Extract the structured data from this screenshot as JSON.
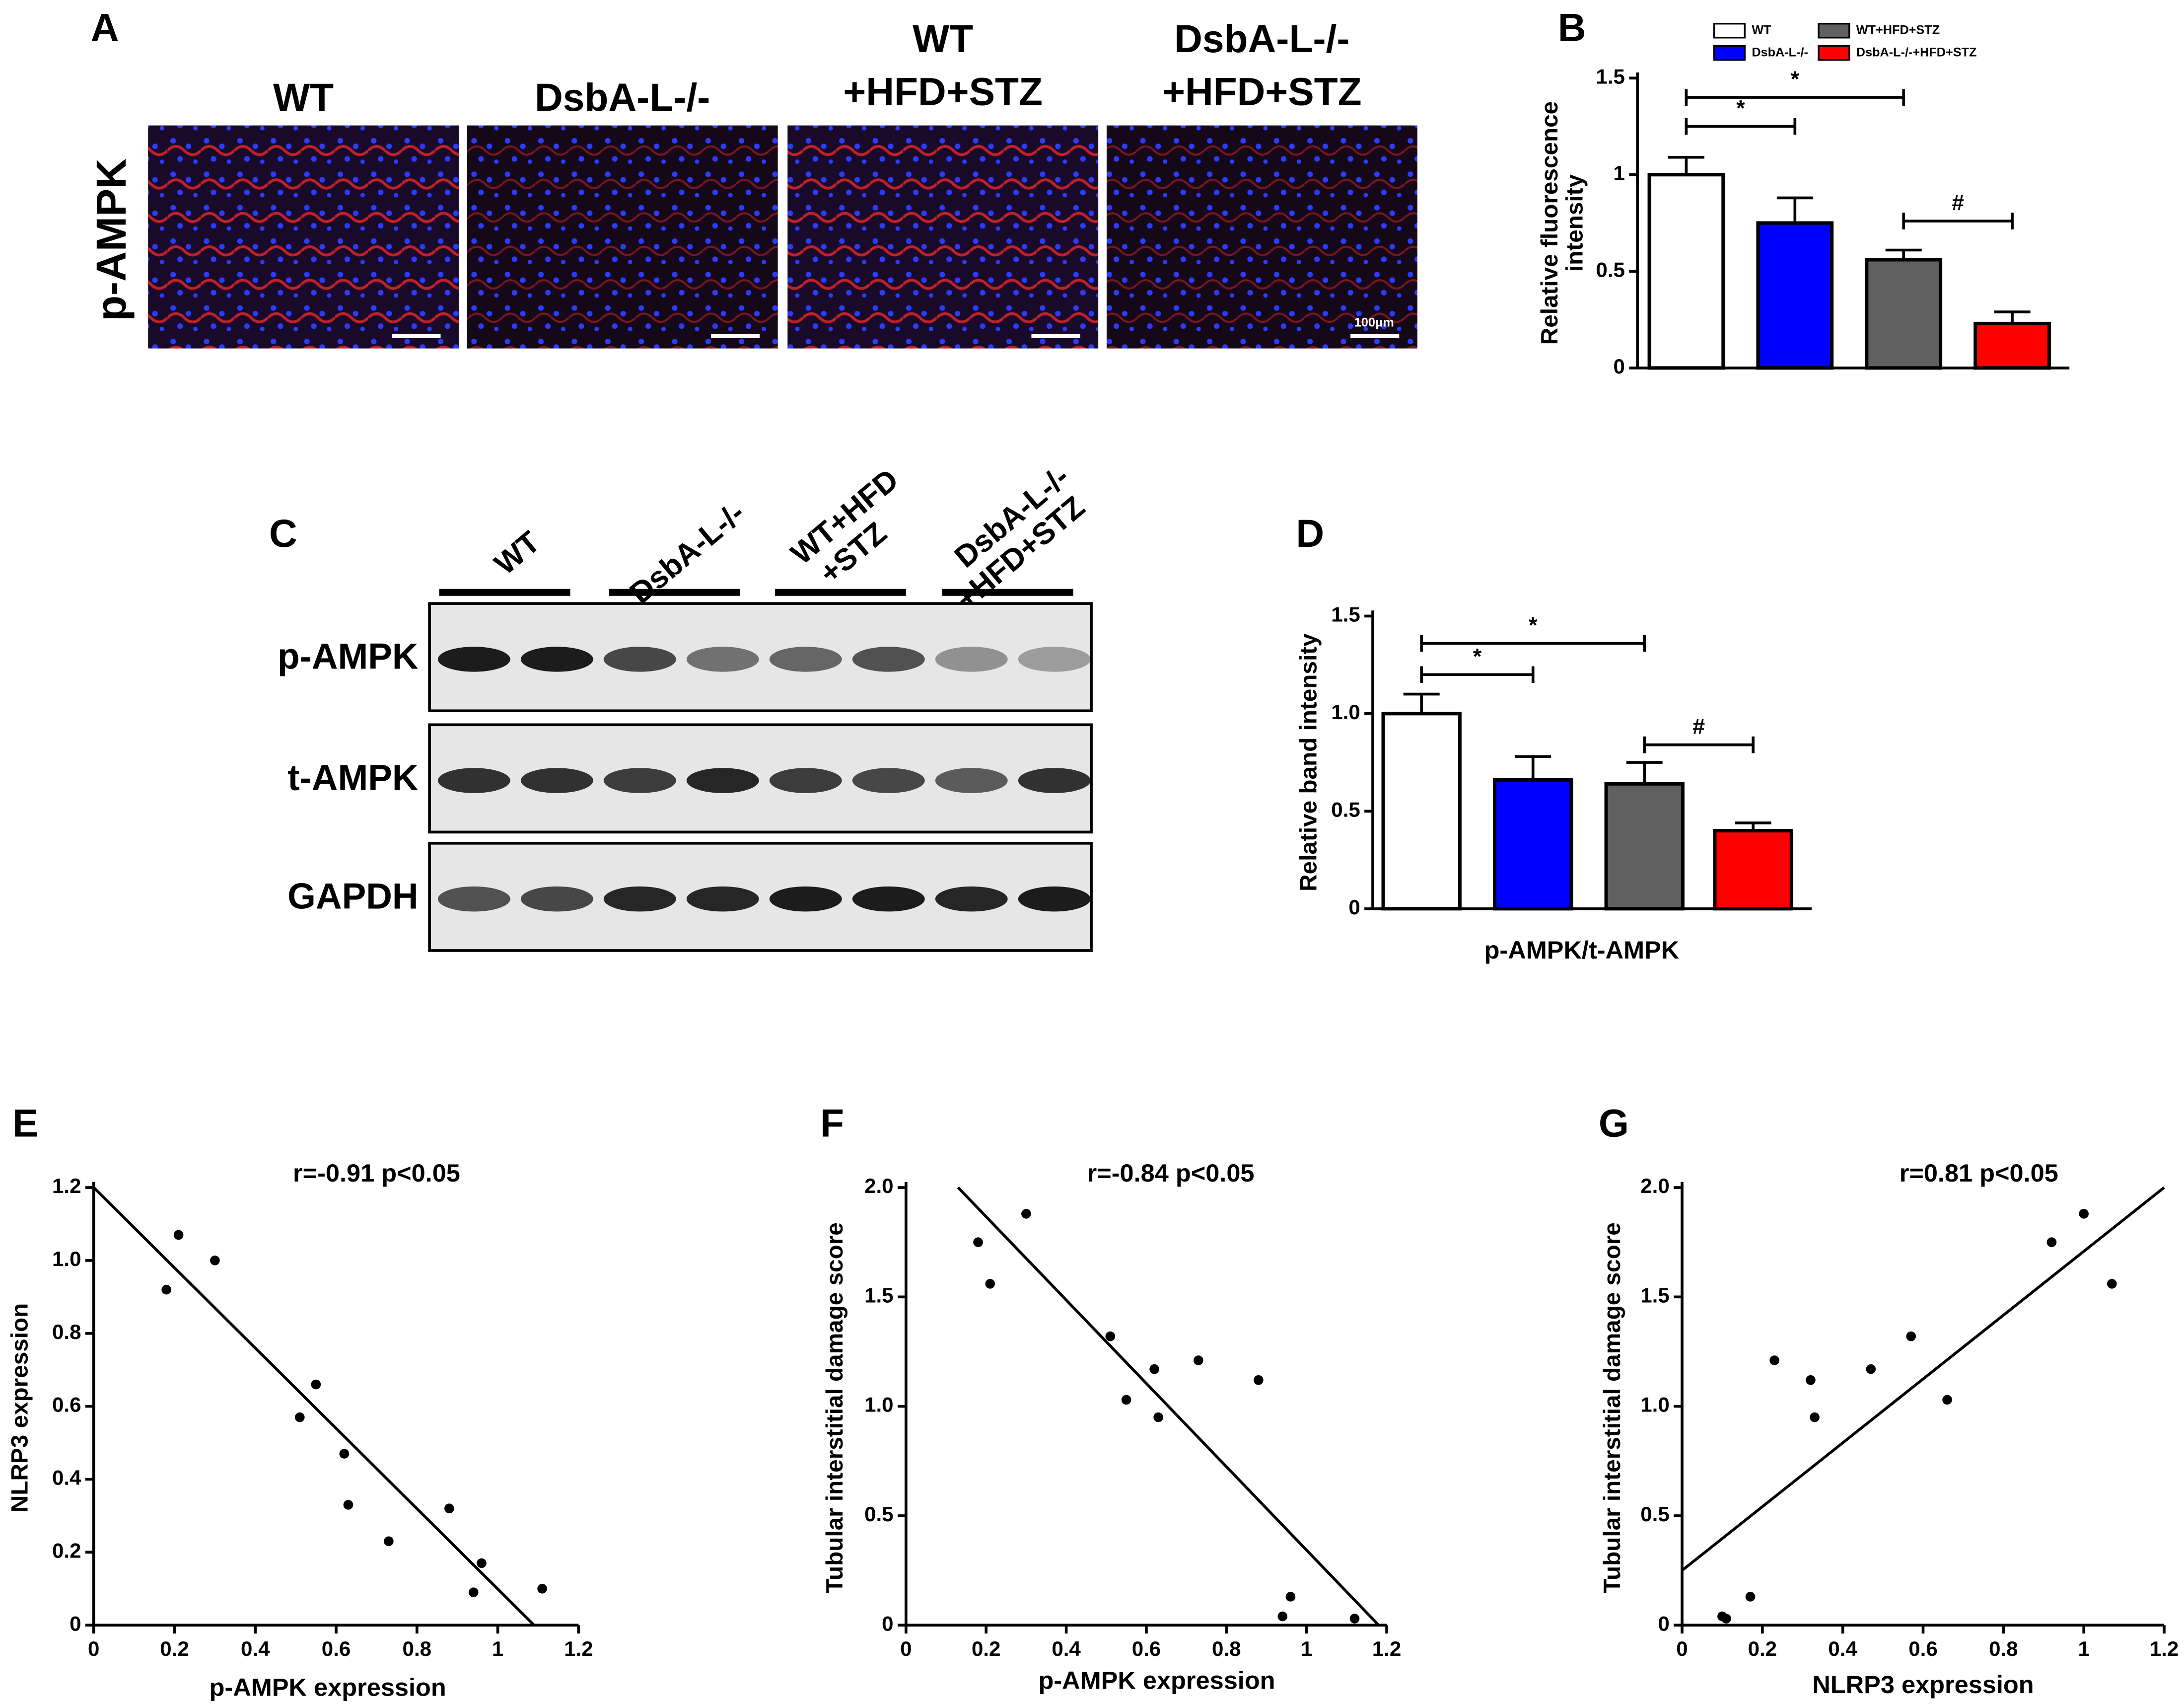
{
  "panel_a": {
    "label": "A",
    "row_label": "p-AMPK",
    "columns": [
      [
        "WT"
      ],
      [
        "DsbA-L-/-"
      ],
      [
        "WT",
        "+HFD+STZ"
      ],
      [
        "DsbA-L-/-",
        "+HFD+STZ"
      ]
    ],
    "scale_label": "100μm"
  },
  "panel_c": {
    "label": "C",
    "lanes": [
      [
        "WT"
      ],
      [
        "DsbA-L-/-"
      ],
      [
        "WT+HFD",
        "+STZ"
      ],
      [
        "DsbA-L-/-",
        "+HFD+STZ"
      ]
    ],
    "rows": [
      "p-AMPK",
      "t-AMPK",
      "GAPDH"
    ]
  },
  "chart_data": [
    {
      "type": "bar",
      "label": "B",
      "ylabel": [
        "Relative fluorescence",
        "intensity"
      ],
      "categories": [
        "WT",
        "DsbA-L-/-",
        "WT+HFD+STZ",
        "DsbA-L-/-+HFD+STZ"
      ],
      "values": [
        1.0,
        0.75,
        0.56,
        0.23
      ],
      "errors": [
        0.09,
        0.13,
        0.05,
        0.06
      ],
      "colors": [
        "#ffffff",
        "#0000ff",
        "#606060",
        "#ff0000"
      ],
      "legend": true,
      "ylim": [
        0,
        1.5
      ],
      "yticks": [
        0,
        0.5,
        1,
        1.5
      ],
      "annotations": [
        {
          "text": "*"
        },
        {
          "text": "*"
        },
        {
          "text": "#"
        }
      ]
    },
    {
      "type": "bar",
      "label": "D",
      "ylabel": [
        "Relative band intensity"
      ],
      "xlabel": "p-AMPK/t-AMPK",
      "values": [
        1.0,
        0.66,
        0.64,
        0.4
      ],
      "errors": [
        0.1,
        0.12,
        0.11,
        0.04
      ],
      "colors": [
        "#ffffff",
        "#0000ff",
        "#606060",
        "#ff0000"
      ],
      "legend": false,
      "ylim": [
        0,
        1.5
      ],
      "yticks": [
        0,
        0.5,
        {
          "value": 1,
          "label": "1.0"
        },
        1.5
      ],
      "annotations": [
        {
          "text": "*"
        },
        {
          "text": "*"
        },
        {
          "text": "#"
        }
      ]
    },
    {
      "type": "scatter",
      "label": "E",
      "ylabel": [
        "NLRP3 expression"
      ],
      "xlabel": "p-AMPK expression",
      "annotation": "r=-0.91   p<0.05",
      "color": "#000000",
      "x": [
        0.18,
        0.21,
        0.3,
        0.51,
        0.55,
        0.62,
        0.63,
        0.73,
        0.88,
        0.94,
        0.96,
        1.11
      ],
      "values": [
        0.92,
        1.07,
        1.0,
        0.57,
        0.66,
        0.47,
        0.33,
        0.23,
        0.32,
        0.09,
        0.17,
        0.1
      ],
      "fit_line": {
        "x": [
          0,
          1.09
        ],
        "values": [
          1.2,
          0
        ]
      },
      "xlim": [
        0,
        1.2
      ],
      "xticks": [
        0,
        0.2,
        0.4,
        0.6,
        0.8,
        1,
        1.2
      ],
      "ylim": [
        0,
        1.2
      ],
      "yticks": [
        0,
        0.2,
        0.4,
        0.6,
        0.8,
        {
          "value": 1,
          "label": "1.0"
        },
        1.2
      ]
    },
    {
      "type": "scatter",
      "label": "F",
      "ylabel": [
        "Tubular interstitial damage score"
      ],
      "xlabel": "p-AMPK expression",
      "annotation": "r=-0.84   p<0.05",
      "color": "#000000",
      "x": [
        0.18,
        0.21,
        0.3,
        0.51,
        0.55,
        0.62,
        0.63,
        0.73,
        0.88,
        0.94,
        0.96,
        1.12
      ],
      "values": [
        1.75,
        1.56,
        1.88,
        1.32,
        1.03,
        1.17,
        0.95,
        1.21,
        1.12,
        0.04,
        0.13,
        0.03
      ],
      "fit_line": {
        "x": [
          0.13,
          1.18
        ],
        "values": [
          2.0,
          0
        ]
      },
      "xlim": [
        0,
        1.2
      ],
      "xticks": [
        0,
        0.2,
        0.4,
        0.6,
        0.8,
        1,
        1.2
      ],
      "ylim": [
        0,
        2
      ],
      "yticks": [
        0,
        0.5,
        {
          "value": 1,
          "label": "1.0"
        },
        1.5,
        {
          "value": 2,
          "label": "2.0"
        }
      ]
    },
    {
      "type": "scatter",
      "label": "G",
      "ylabel": [
        "Tubular interstitial damage score"
      ],
      "xlabel": "NLRP3 expression",
      "annotation": "r=0.81   p<0.05",
      "color": "#000000",
      "x": [
        0.1,
        0.11,
        0.17,
        0.23,
        0.32,
        0.33,
        0.47,
        0.57,
        0.66,
        0.92,
        1.0,
        1.07
      ],
      "values": [
        0.04,
        0.03,
        0.13,
        1.21,
        1.12,
        0.95,
        1.17,
        1.32,
        1.03,
        1.75,
        1.88,
        1.56
      ],
      "fit_line": {
        "x": [
          0,
          1.2
        ],
        "values": [
          0.25,
          2.0
        ]
      },
      "xlim": [
        0,
        1.2
      ],
      "xticks": [
        0,
        0.2,
        0.4,
        0.6,
        0.8,
        1,
        1.2
      ],
      "ylim": [
        0,
        2
      ],
      "yticks": [
        0,
        0.5,
        {
          "value": 1,
          "label": "1.0"
        },
        1.5,
        {
          "value": 2,
          "label": "2.0"
        }
      ]
    }
  ]
}
